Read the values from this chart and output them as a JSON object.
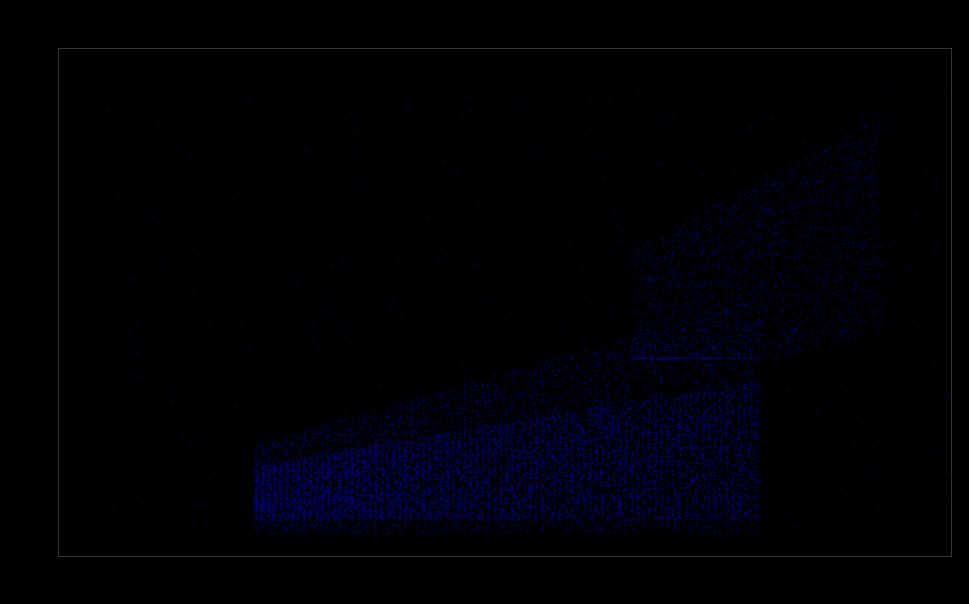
{
  "background_color": "#000000",
  "axes_bg_color": "#000000",
  "dot_color": "#00008B",
  "dot_size": 1.2,
  "dot_alpha": 0.8,
  "xlim": [
    0,
    9000
  ],
  "ylim": [
    0,
    9000
  ],
  "grid_color": "#ffffff",
  "grid_alpha": 0.25,
  "grid_linewidth": 0.5,
  "seed": 42,
  "n_main": 12000,
  "n_upper": 2000,
  "n_sparse": 500
}
